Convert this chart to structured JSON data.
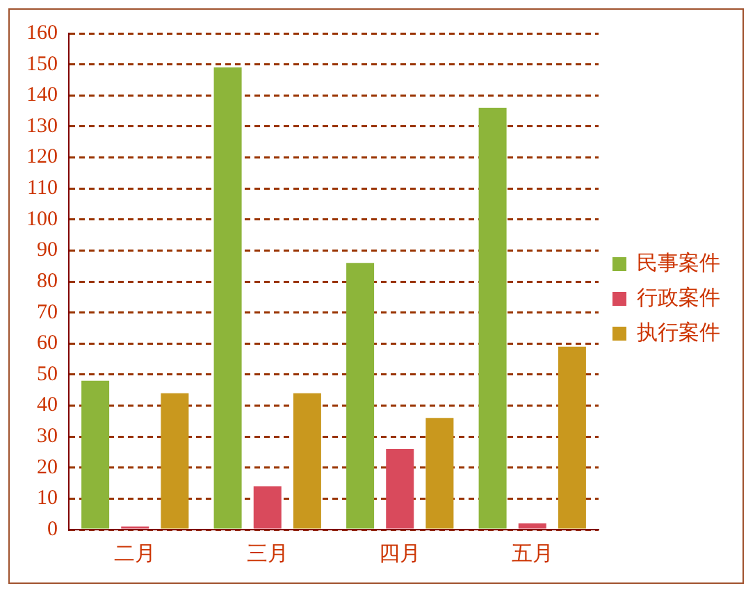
{
  "chart_data": {
    "type": "bar",
    "categories": [
      "二月",
      "三月",
      "四月",
      "五月"
    ],
    "series": [
      {
        "name": "民事案件",
        "color": "#8db53a",
        "values": [
          48,
          149,
          86,
          136
        ]
      },
      {
        "name": "行政案件",
        "color": "#d94a5c",
        "values": [
          1,
          14,
          26,
          2
        ]
      },
      {
        "name": "执行案件",
        "color": "#c9981e",
        "values": [
          44,
          44,
          36,
          59
        ]
      }
    ],
    "ylim": [
      0,
      160
    ],
    "yticks": [
      0,
      10,
      20,
      30,
      40,
      50,
      60,
      70,
      80,
      90,
      100,
      110,
      120,
      130,
      140,
      150,
      160
    ],
    "grid": "y",
    "legend": "right"
  }
}
